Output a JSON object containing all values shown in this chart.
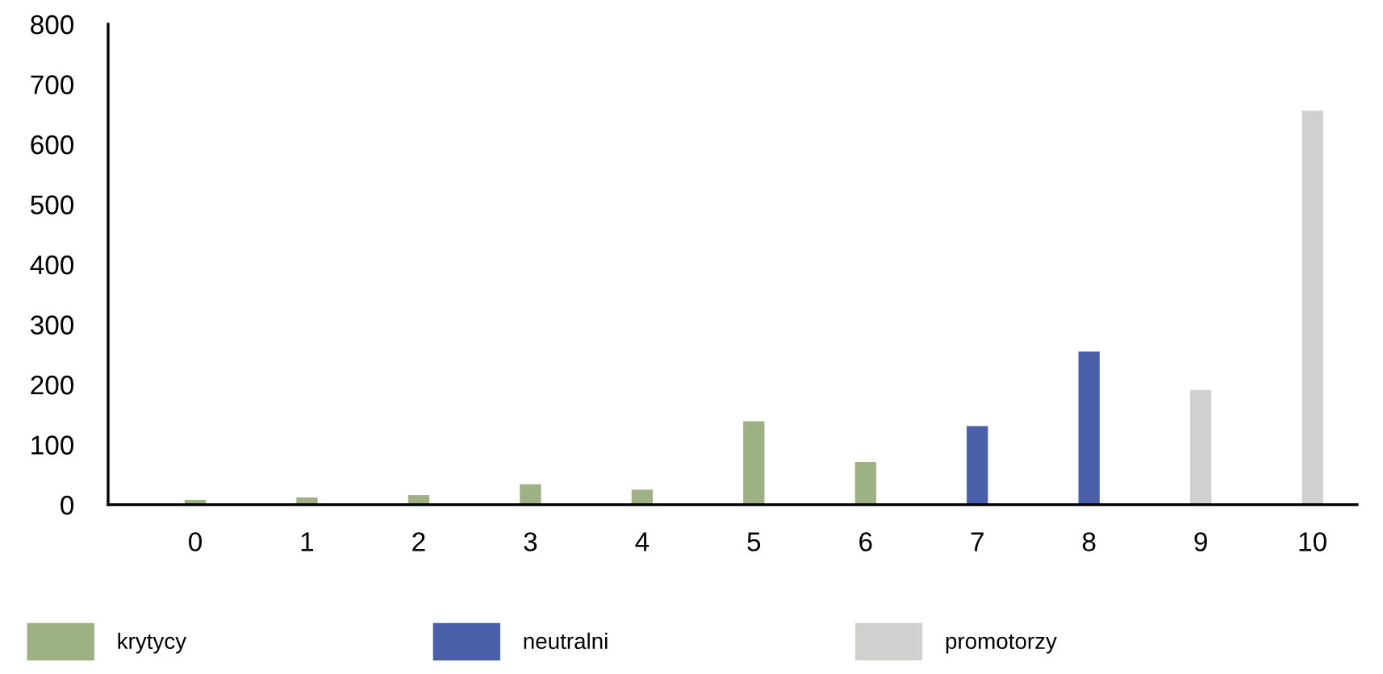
{
  "chart_data": {
    "type": "bar",
    "categories": [
      "0",
      "1",
      "2",
      "3",
      "4",
      "5",
      "6",
      "7",
      "8",
      "9",
      "10"
    ],
    "series": [
      {
        "name": "krytycy",
        "color": "#9db184",
        "values": [
          8,
          12,
          16,
          34,
          25,
          139,
          71,
          null,
          null,
          null,
          null
        ]
      },
      {
        "name": "neutralni",
        "color": "#4a5fa8",
        "values": [
          null,
          null,
          null,
          null,
          null,
          null,
          null,
          131,
          255,
          null,
          null
        ]
      },
      {
        "name": "promotorzy",
        "color": "#d0d0ce",
        "values": [
          null,
          null,
          null,
          null,
          null,
          null,
          null,
          null,
          null,
          191,
          656
        ]
      }
    ],
    "ylim": [
      0,
      800
    ],
    "yticks": [
      0,
      100,
      200,
      300,
      400,
      500,
      600,
      700,
      800
    ],
    "grid": false,
    "legend": "bottom"
  }
}
